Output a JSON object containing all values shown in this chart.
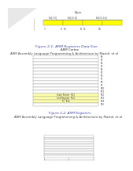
{
  "bg_color": "#ffffff",
  "top_section": {
    "title": "Byte",
    "caption": "Figure 2-1: ARM Registers Data Size",
    "attribution": "ARM Assembly Language Programming & Architecture by Mazidi, et al",
    "bar_color": "#ffff00",
    "bar_seg_colors": [
      "#d0d0d0",
      "#ffffff",
      "#d0d0d0",
      "#ffffff"
    ],
    "tick_labels_top": [
      "Bit[7:0]",
      "Bit[15:8]",
      "Bit[31:16]"
    ],
    "tick_labels_bot": [
      "7",
      "0",
      "15",
      "8",
      "31",
      "16"
    ],
    "has_triangle": true
  },
  "middle_section": {
    "title": "ARM Cortex",
    "caption": "Figure 2-2: ARM Registers",
    "attribution": "ARM Assembly Language Programming & Architecture by Mazidi, et al",
    "num_rows": 16,
    "yellow_rows": [
      12,
      13,
      14
    ],
    "row_color": "#ffffff",
    "yellow_color": "#ffffaa",
    "border_color": "#999999",
    "reg_labels": [
      "R0",
      "R1",
      "R2",
      "R3",
      "R4",
      "R5",
      "R6",
      "R7",
      "R8",
      "R9",
      "R10",
      "R11",
      "R12",
      "R13",
      "R14",
      "R15"
    ],
    "special_labels": {
      "12": "Stack Pointer  R13",
      "13": "Link Register  R14",
      "14": "PC  R15"
    }
  },
  "bottom_section": {
    "num_rows": 10,
    "row_color": "#ffffff",
    "border_color": "#999999",
    "has_ticks_bottom": true
  }
}
